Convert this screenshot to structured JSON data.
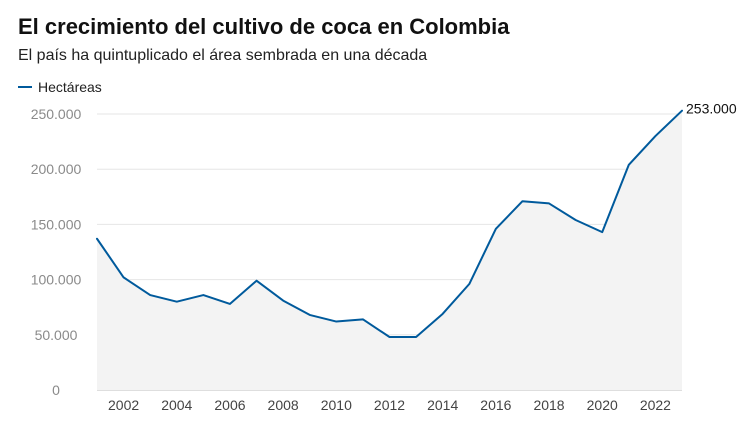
{
  "chart_data": {
    "type": "area",
    "title": "El crecimiento del cultivo de coca en Colombia",
    "subtitle": "El país ha quintuplicado el área sembrada en una década",
    "xlabel": "",
    "ylabel": "",
    "ylim": [
      0,
      250000
    ],
    "xlim": [
      2001,
      2023
    ],
    "y_ticks": [
      0,
      50000,
      100000,
      150000,
      200000,
      250000
    ],
    "y_tick_labels": [
      "0",
      "50.000",
      "100.000",
      "150.000",
      "200.000",
      "250.000"
    ],
    "x_ticks": [
      2002,
      2004,
      2006,
      2008,
      2010,
      2012,
      2014,
      2016,
      2018,
      2020,
      2022
    ],
    "x_tick_labels": [
      "2002",
      "2004",
      "2006",
      "2008",
      "2010",
      "2012",
      "2014",
      "2016",
      "2018",
      "2020",
      "2022"
    ],
    "grid": true,
    "legend": "top-left",
    "series": [
      {
        "name": "Hectáreas",
        "color": "#005a9c",
        "x": [
          2001,
          2002,
          2003,
          2004,
          2005,
          2006,
          2007,
          2008,
          2009,
          2010,
          2011,
          2012,
          2013,
          2014,
          2015,
          2016,
          2017,
          2018,
          2019,
          2020,
          2021,
          2022,
          2023
        ],
        "values": [
          137000,
          102000,
          86000,
          80000,
          86000,
          78000,
          99000,
          81000,
          68000,
          62000,
          64000,
          48000,
          48000,
          69000,
          96000,
          146000,
          171000,
          169000,
          154000,
          143000,
          204000,
          230000,
          253000
        ]
      }
    ],
    "annotations": [
      {
        "text": "253.000",
        "x": 2023,
        "y": 253000
      }
    ]
  }
}
